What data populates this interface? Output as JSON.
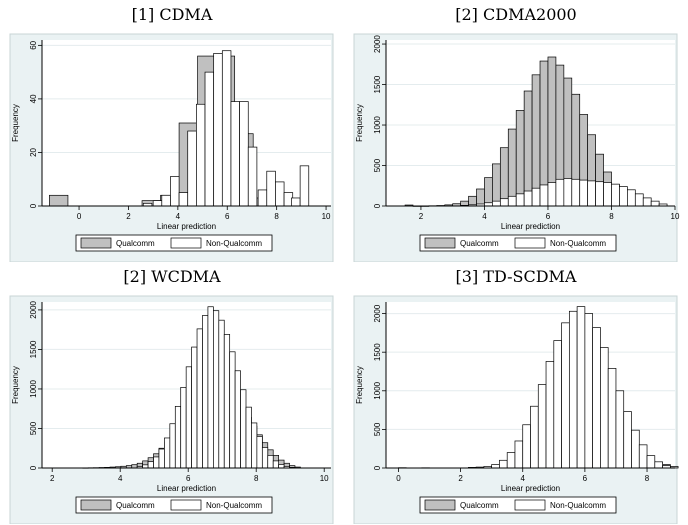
{
  "legend_labels": {
    "qualcomm": "Qualcomm",
    "non_qualcomm": "Non-Qualcomm"
  },
  "colors": {
    "qualcomm_fill": "#c0c0c0",
    "non_qualcomm_fill": "#ffffff",
    "frame_bg": "#eaf2f3",
    "stroke": "#000000"
  },
  "chart_data": [
    {
      "type": "histogram",
      "title": "[1]  CDMA",
      "xlabel": "Linear prediction",
      "ylabel": "Frequency",
      "xlim": [
        -1.5,
        10.2
      ],
      "ylim": [
        0,
        62
      ],
      "xticks": [
        0,
        2,
        4,
        6,
        8,
        10
      ],
      "yticks": [
        0,
        20,
        40,
        60
      ],
      "series": [
        {
          "name": "Qualcomm",
          "bin_width": 0.75,
          "bins": [
            [
              -1.2,
              4
            ],
            [
              2.55,
              2
            ],
            [
              3.3,
              4
            ],
            [
              4.05,
              31
            ],
            [
              4.8,
              56
            ],
            [
              5.55,
              56
            ],
            [
              6.3,
              27
            ],
            [
              7.05,
              3
            ],
            [
              7.8,
              1
            ]
          ]
        },
        {
          "name": "Non-Qualcomm",
          "bin_width": 0.35,
          "bins": [
            [
              2.6,
              1
            ],
            [
              3.0,
              2
            ],
            [
              3.35,
              4
            ],
            [
              3.7,
              11
            ],
            [
              4.05,
              5
            ],
            [
              4.4,
              28
            ],
            [
              4.75,
              38
            ],
            [
              5.1,
              50
            ],
            [
              5.45,
              57
            ],
            [
              5.8,
              58
            ],
            [
              6.15,
              39
            ],
            [
              6.5,
              39
            ],
            [
              6.85,
              22
            ],
            [
              7.25,
              6
            ],
            [
              7.6,
              13
            ],
            [
              7.95,
              9
            ],
            [
              8.3,
              5
            ],
            [
              8.6,
              3
            ],
            [
              8.95,
              15
            ]
          ]
        }
      ]
    },
    {
      "type": "histogram",
      "title": "[2]  CDMA2000",
      "xlabel": "Linear prediction",
      "ylabel": "Frequency",
      "xlim": [
        0.9,
        10.0
      ],
      "ylim": [
        0,
        2050
      ],
      "xticks": [
        2,
        4,
        6,
        8,
        10
      ],
      "yticks": [
        0,
        500,
        1000,
        1500,
        2000
      ],
      "series": [
        {
          "name": "Qualcomm",
          "bin_width": 0.25,
          "bins": [
            [
              1.5,
              12
            ],
            [
              1.75,
              0
            ],
            [
              2.0,
              0
            ],
            [
              2.25,
              3
            ],
            [
              2.5,
              6
            ],
            [
              2.75,
              14
            ],
            [
              3.0,
              28
            ],
            [
              3.25,
              60
            ],
            [
              3.5,
              120
            ],
            [
              3.75,
              210
            ],
            [
              4.0,
              350
            ],
            [
              4.25,
              520
            ],
            [
              4.5,
              720
            ],
            [
              4.75,
              950
            ],
            [
              5.0,
              1180
            ],
            [
              5.25,
              1420
            ],
            [
              5.5,
              1620
            ],
            [
              5.75,
              1790
            ],
            [
              6.0,
              1840
            ],
            [
              6.25,
              1740
            ],
            [
              6.5,
              1580
            ],
            [
              6.75,
              1380
            ],
            [
              7.0,
              1130
            ],
            [
              7.25,
              880
            ],
            [
              7.5,
              640
            ],
            [
              7.75,
              420
            ],
            [
              8.0,
              260
            ],
            [
              8.25,
              140
            ],
            [
              8.5,
              70
            ],
            [
              8.75,
              30
            ],
            [
              9.0,
              12
            ],
            [
              9.25,
              4
            ]
          ]
        },
        {
          "name": "Non-Qualcomm",
          "bin_width": 0.25,
          "bins": [
            [
              3.25,
              8
            ],
            [
              3.5,
              15
            ],
            [
              3.75,
              25
            ],
            [
              4.0,
              40
            ],
            [
              4.25,
              60
            ],
            [
              4.5,
              90
            ],
            [
              4.75,
              120
            ],
            [
              5.0,
              150
            ],
            [
              5.25,
              185
            ],
            [
              5.5,
              220
            ],
            [
              5.75,
              260
            ],
            [
              6.0,
              290
            ],
            [
              6.25,
              330
            ],
            [
              6.5,
              340
            ],
            [
              6.75,
              330
            ],
            [
              7.0,
              320
            ],
            [
              7.25,
              310
            ],
            [
              7.5,
              300
            ],
            [
              7.75,
              290
            ],
            [
              8.0,
              270
            ],
            [
              8.25,
              240
            ],
            [
              8.5,
              200
            ],
            [
              8.75,
              150
            ],
            [
              9.0,
              100
            ],
            [
              9.25,
              60
            ],
            [
              9.5,
              25
            ]
          ]
        }
      ]
    },
    {
      "type": "histogram",
      "title": "[2]  WCDMA",
      "xlabel": "Linear prediction",
      "ylabel": "Frequency",
      "xlim": [
        1.7,
        10.2
      ],
      "ylim": [
        0,
        2100
      ],
      "xticks": [
        2,
        4,
        6,
        8,
        10
      ],
      "yticks": [
        0,
        500,
        1000,
        1500,
        2000
      ],
      "series": [
        {
          "name": "Qualcomm",
          "bin_width": 0.16,
          "bins": [
            [
              2.9,
              2
            ],
            [
              3.06,
              3
            ],
            [
              3.22,
              4
            ],
            [
              3.38,
              6
            ],
            [
              3.54,
              8
            ],
            [
              3.7,
              12
            ],
            [
              3.86,
              16
            ],
            [
              4.02,
              22
            ],
            [
              4.18,
              30
            ],
            [
              4.34,
              42
            ],
            [
              4.5,
              60
            ],
            [
              4.66,
              90
            ],
            [
              4.82,
              130
            ],
            [
              4.98,
              180
            ],
            [
              5.14,
              250
            ],
            [
              5.3,
              330
            ],
            [
              5.46,
              420
            ],
            [
              5.62,
              510
            ],
            [
              5.78,
              600
            ],
            [
              5.94,
              700
            ],
            [
              6.1,
              790
            ],
            [
              6.26,
              860
            ],
            [
              6.42,
              920
            ],
            [
              6.58,
              960
            ],
            [
              6.74,
              980
            ],
            [
              6.9,
              980
            ],
            [
              7.06,
              950
            ],
            [
              7.22,
              900
            ],
            [
              7.38,
              830
            ],
            [
              7.54,
              740
            ],
            [
              7.7,
              640
            ],
            [
              7.86,
              530
            ],
            [
              8.02,
              420
            ],
            [
              8.18,
              320
            ],
            [
              8.34,
              230
            ],
            [
              8.5,
              160
            ],
            [
              8.66,
              100
            ],
            [
              8.82,
              60
            ],
            [
              8.98,
              30
            ],
            [
              9.14,
              12
            ]
          ]
        },
        {
          "name": "Non-Qualcomm",
          "bin_width": 0.16,
          "bins": [
            [
              4.5,
              20
            ],
            [
              4.66,
              40
            ],
            [
              4.82,
              80
            ],
            [
              4.98,
              140
            ],
            [
              5.14,
              240
            ],
            [
              5.3,
              380
            ],
            [
              5.46,
              560
            ],
            [
              5.62,
              780
            ],
            [
              5.78,
              1020
            ],
            [
              5.94,
              1280
            ],
            [
              6.1,
              1530
            ],
            [
              6.26,
              1760
            ],
            [
              6.42,
              1930
            ],
            [
              6.58,
              2040
            ],
            [
              6.74,
              1990
            ],
            [
              6.9,
              1870
            ],
            [
              7.06,
              1690
            ],
            [
              7.22,
              1470
            ],
            [
              7.38,
              1230
            ],
            [
              7.54,
              990
            ],
            [
              7.7,
              770
            ],
            [
              7.86,
              570
            ],
            [
              8.02,
              400
            ],
            [
              8.18,
              260
            ],
            [
              8.34,
              160
            ],
            [
              8.5,
              90
            ],
            [
              8.66,
              45
            ],
            [
              8.82,
              20
            ],
            [
              8.98,
              8
            ]
          ]
        }
      ]
    },
    {
      "type": "histogram",
      "title": "[3]  TD-SCDMA",
      "xlabel": "Linear prediction",
      "ylabel": "Frequency",
      "xlim": [
        -0.4,
        8.9
      ],
      "ylim": [
        0,
        2150
      ],
      "xticks": [
        0,
        2,
        4,
        6,
        8
      ],
      "yticks": [
        0,
        500,
        1000,
        1500,
        2000
      ],
      "series": [
        {
          "name": "Qualcomm",
          "bin_width": 0.25,
          "bins": [
            [
              0.0,
              4
            ],
            [
              0.75,
              3
            ],
            [
              4.25,
              5
            ],
            [
              4.5,
              10
            ],
            [
              4.75,
              20
            ],
            [
              5.0,
              30
            ],
            [
              5.25,
              45
            ],
            [
              5.5,
              55
            ],
            [
              5.75,
              70
            ],
            [
              6.0,
              80
            ],
            [
              6.25,
              90
            ],
            [
              6.5,
              95
            ],
            [
              6.75,
              100
            ],
            [
              7.0,
              105
            ],
            [
              7.25,
              110
            ],
            [
              7.5,
              105
            ],
            [
              7.75,
              100
            ],
            [
              8.0,
              90
            ],
            [
              8.25,
              70
            ],
            [
              8.5,
              45
            ],
            [
              8.75,
              20
            ]
          ]
        },
        {
          "name": "Non-Qualcomm",
          "bin_width": 0.25,
          "bins": [
            [
              2.25,
              8
            ],
            [
              2.5,
              12
            ],
            [
              2.75,
              20
            ],
            [
              3.0,
              45
            ],
            [
              3.25,
              100
            ],
            [
              3.5,
              200
            ],
            [
              3.75,
              350
            ],
            [
              4.0,
              560
            ],
            [
              4.25,
              800
            ],
            [
              4.5,
              1080
            ],
            [
              4.75,
              1380
            ],
            [
              5.0,
              1650
            ],
            [
              5.25,
              1880
            ],
            [
              5.5,
              2030
            ],
            [
              5.75,
              2090
            ],
            [
              6.0,
              2000
            ],
            [
              6.25,
              1820
            ],
            [
              6.5,
              1560
            ],
            [
              6.75,
              1290
            ],
            [
              7.0,
              1000
            ],
            [
              7.25,
              730
            ],
            [
              7.5,
              490
            ],
            [
              7.75,
              300
            ],
            [
              8.0,
              160
            ],
            [
              8.25,
              80
            ],
            [
              8.5,
              30
            ]
          ]
        }
      ]
    }
  ]
}
